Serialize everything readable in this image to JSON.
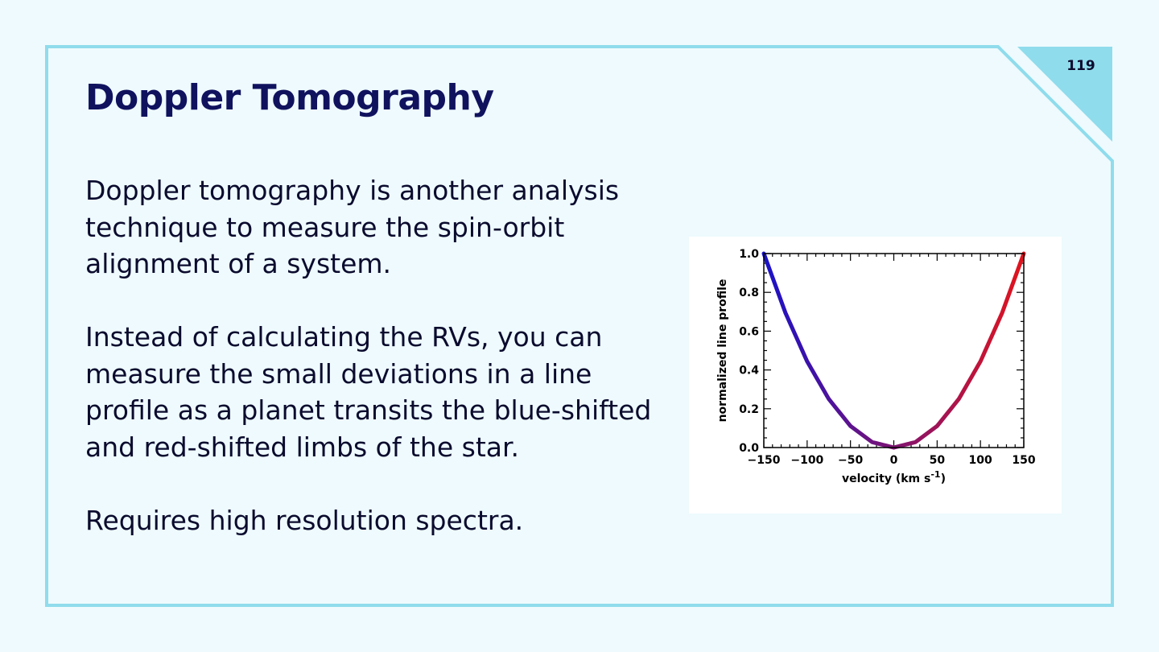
{
  "slide": {
    "page_number": "119",
    "title": "Doppler Tomography",
    "paragraphs": [
      "Doppler tomography is another analysis technique to measure the spin-orbit alignment of a system.",
      "Instead of calculating the RVs, you can measure the small deviations in a line profile as a planet transits the blue-shifted and red-shifted limbs of the star.",
      "Requires high resolution spectra."
    ]
  },
  "colors": {
    "background": "#eefafd",
    "frame_border": "#8fdcec",
    "corner_fill": "#8fdcec",
    "title": "#10125e",
    "curve_start": "#1a12c8",
    "curve_end": "#e2141c"
  },
  "chart_data": {
    "type": "line",
    "xlabel": "velocity (km s",
    "xlabel_superscript": "-1",
    "xlabel_suffix": ")",
    "ylabel": "normalized line profile",
    "xlim": [
      -150,
      150
    ],
    "ylim": [
      0,
      1
    ],
    "x_ticks": [
      -150,
      -100,
      -50,
      0,
      50,
      100,
      150
    ],
    "x_tick_labels": [
      "−150",
      "−100",
      "−50",
      "0",
      "50",
      "100",
      "150"
    ],
    "y_ticks": [
      0,
      0.2,
      0.4,
      0.6,
      0.8,
      1.0
    ],
    "y_tick_labels": [
      "0.0",
      "0.2",
      "0.4",
      "0.6",
      "0.8",
      "1.0"
    ],
    "curve": {
      "x": [
        -150,
        -125,
        -100,
        -75,
        -50,
        -25,
        0,
        25,
        50,
        75,
        100,
        125,
        150
      ],
      "y": [
        1.0,
        0.694,
        0.444,
        0.25,
        0.111,
        0.028,
        0.0,
        0.028,
        0.111,
        0.25,
        0.444,
        0.694,
        1.0
      ]
    },
    "gradient": "blue-to-red",
    "grid": false,
    "legend": "none"
  }
}
